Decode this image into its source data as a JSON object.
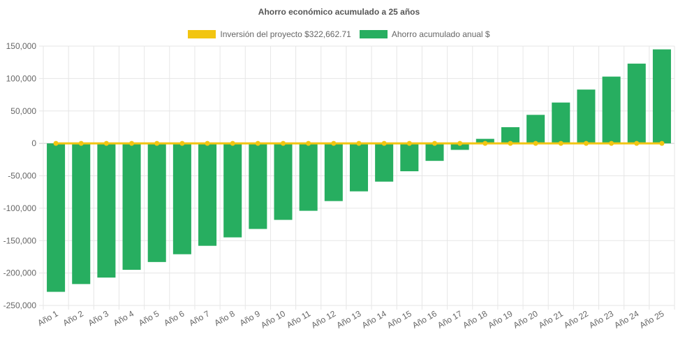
{
  "chart_data": {
    "type": "bar",
    "title": "Ahorro económico acumulado a 25 años",
    "xlabel": "",
    "ylabel": "",
    "ylim": [
      -250000,
      150000
    ],
    "yticks": [
      "150,000",
      "100,000",
      "50,000",
      "0",
      "-50,000",
      "-100,000",
      "-150,000",
      "-200,000",
      "-250,000"
    ],
    "ytick_values": [
      150000,
      100000,
      50000,
      0,
      -50000,
      -100000,
      -150000,
      -200000,
      -250000
    ],
    "grid": true,
    "legend_position": "top-center",
    "categories": [
      "Año 1",
      "Año 2",
      "Año 3",
      "Año 4",
      "Año 5",
      "Año 6",
      "Año 7",
      "Año 8",
      "Año 9",
      "Año 10",
      "Año 11",
      "Año 12",
      "Año 13",
      "Año 14",
      "Año 15",
      "Año 16",
      "Año 17",
      "Año 18",
      "Año 19",
      "Año 20",
      "Año 21",
      "Año 22",
      "Año 23",
      "Año 24",
      "Año 25"
    ],
    "series": [
      {
        "name": "Inversión del proyecto $322,662.71",
        "type": "line",
        "color": "#f2c511",
        "values": [
          0,
          0,
          0,
          0,
          0,
          0,
          0,
          0,
          0,
          0,
          0,
          0,
          0,
          0,
          0,
          0,
          0,
          0,
          0,
          0,
          0,
          0,
          0,
          0,
          0
        ]
      },
      {
        "name": "Ahorro acumulado anual $",
        "type": "bar",
        "color": "#27ae60",
        "values": [
          -229000,
          -217000,
          -207000,
          -195000,
          -183000,
          -171000,
          -158000,
          -145000,
          -132000,
          -118000,
          -104000,
          -89000,
          -74000,
          -59000,
          -43000,
          -27000,
          -10000,
          7000,
          25000,
          44000,
          63000,
          83000,
          103000,
          123000,
          145000
        ]
      }
    ]
  }
}
